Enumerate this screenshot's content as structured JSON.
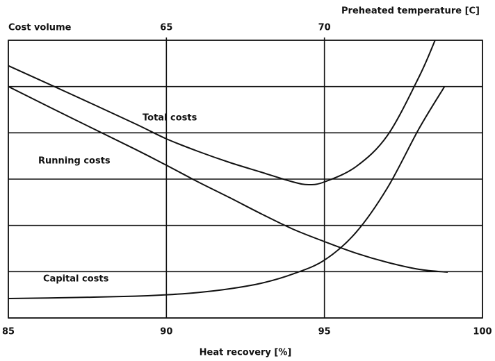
{
  "chart_data": {
    "type": "line",
    "y_label": "Cost volume",
    "x_label": "Heat recovery [%]",
    "x2_label": "Preheated temperature [C]",
    "xlim": [
      85,
      100
    ],
    "xticks": [
      85,
      90,
      95,
      100
    ],
    "x2lim": [
      60,
      75
    ],
    "x2ticks": [
      65,
      70
    ],
    "ylim": [
      0,
      6
    ],
    "yticks": [
      0,
      1,
      2,
      3,
      4,
      5,
      6
    ],
    "grid": true,
    "series": [
      {
        "name": "Total costs",
        "color": "#111111",
        "x": [
          85,
          87,
          89,
          90,
          91,
          92,
          93,
          94,
          94.5,
          95,
          96,
          97,
          98,
          98.5
        ],
        "values": [
          5.45,
          4.83,
          4.2,
          3.87,
          3.6,
          3.36,
          3.15,
          2.94,
          2.88,
          2.94,
          3.27,
          3.95,
          5.22,
          6.0
        ]
      },
      {
        "name": "Running costs",
        "color": "#111111",
        "x": [
          85,
          87,
          89,
          90,
          91,
          92,
          93,
          94,
          95,
          96,
          97,
          98,
          98.9
        ],
        "values": [
          5.0,
          4.32,
          3.65,
          3.3,
          2.94,
          2.6,
          2.25,
          1.92,
          1.65,
          1.4,
          1.2,
          1.05,
          0.99
        ]
      },
      {
        "name": "Capital costs",
        "color": "#111111",
        "x": [
          85,
          87,
          89,
          90,
          91,
          92,
          93,
          94,
          95,
          96,
          97,
          98,
          98.8
        ],
        "values": [
          0.42,
          0.44,
          0.47,
          0.5,
          0.55,
          0.63,
          0.75,
          0.95,
          1.25,
          1.85,
          2.82,
          4.1,
          5.0
        ]
      }
    ]
  }
}
